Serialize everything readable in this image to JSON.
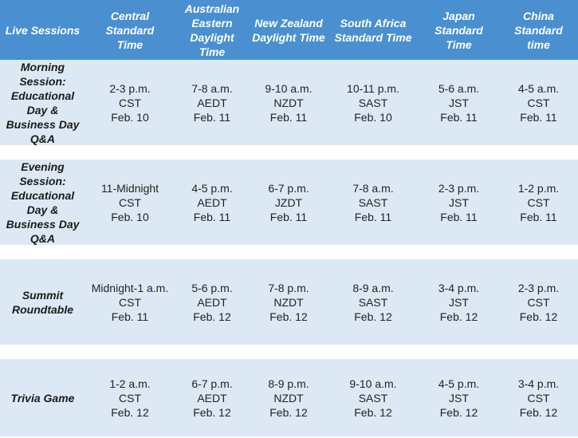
{
  "headers": [
    "Live Sessions",
    "Central Standard\nTime",
    "Australian\nEastern\nDaylight\nTime",
    "New Zealand\nDaylight Time",
    "South Africa\nStandard Time",
    "Japan\nStandard Time",
    "China\nStandard\ntime"
  ],
  "rows": [
    {
      "session": "Morning\nSession:\nEducational\nDay &\nBusiness Day\nQ&A",
      "cells": [
        {
          "time": "2-3 p.m.",
          "zone": "CST",
          "date": "Feb. 10"
        },
        {
          "time": "7-8 a.m.",
          "zone": "AEDT",
          "date": "Feb. 11"
        },
        {
          "time": "9-10 a.m.",
          "zone": "NZDT",
          "date": "Feb. 11"
        },
        {
          "time": "10-11 p.m.",
          "zone": "SAST",
          "date": "Feb. 10"
        },
        {
          "time": "5-6 a.m.",
          "zone": "JST",
          "date": "Feb. 11"
        },
        {
          "time": "4-5 a.m.",
          "zone": "CST",
          "date": "Feb. 11"
        }
      ]
    },
    {
      "session": "Evening\nSession:\nEducational\nDay &\nBusiness Day\nQ&A",
      "cells": [
        {
          "time": "11-Midnight",
          "zone": "CST",
          "date": "Feb. 10"
        },
        {
          "time": "4-5 p.m.",
          "zone": "AEDT",
          "date": "Feb. 11"
        },
        {
          "time": "6-7 p.m.",
          "zone": "JZDT",
          "date": "Feb. 11"
        },
        {
          "time": "7-8 a.m.",
          "zone": "SAST",
          "date": "Feb. 11"
        },
        {
          "time": "2-3 p.m.",
          "zone": "JST",
          "date": "Feb. 11"
        },
        {
          "time": "1-2 p.m.",
          "zone": "CST",
          "date": "Feb. 11"
        }
      ]
    },
    {
      "session": "Summit\nRoundtable",
      "cells": [
        {
          "time": "Midnight-1 a.m.",
          "zone": "CST",
          "date": "Feb. 11"
        },
        {
          "time": "5-6 p.m.",
          "zone": "AEDT",
          "date": "Feb. 12"
        },
        {
          "time": "7-8 p.m.",
          "zone": "NZDT",
          "date": "Feb. 12"
        },
        {
          "time": "8-9 a.m.",
          "zone": "SAST",
          "date": "Feb. 12"
        },
        {
          "time": "3-4 p.m.",
          "zone": "JST",
          "date": "Feb. 12"
        },
        {
          "time": "2-3 p.m.",
          "zone": "CST",
          "date": "Feb. 12"
        }
      ]
    },
    {
      "session": "Trivia Game",
      "cells": [
        {
          "time": "1-2 a.m.",
          "zone": "CST",
          "date": "Feb. 12"
        },
        {
          "time": "6-7 p.m.",
          "zone": "AEDT",
          "date": "Feb. 12"
        },
        {
          "time": "8-9 p.m.",
          "zone": "NZDT",
          "date": "Feb. 12"
        },
        {
          "time": "9-10 a.m.",
          "zone": "SAST",
          "date": "Feb. 12"
        },
        {
          "time": "4-5 p.m.",
          "zone": "JST",
          "date": "Feb. 12"
        },
        {
          "time": "3-4 p.m.",
          "zone": "CST",
          "date": "Feb. 12"
        }
      ]
    }
  ]
}
